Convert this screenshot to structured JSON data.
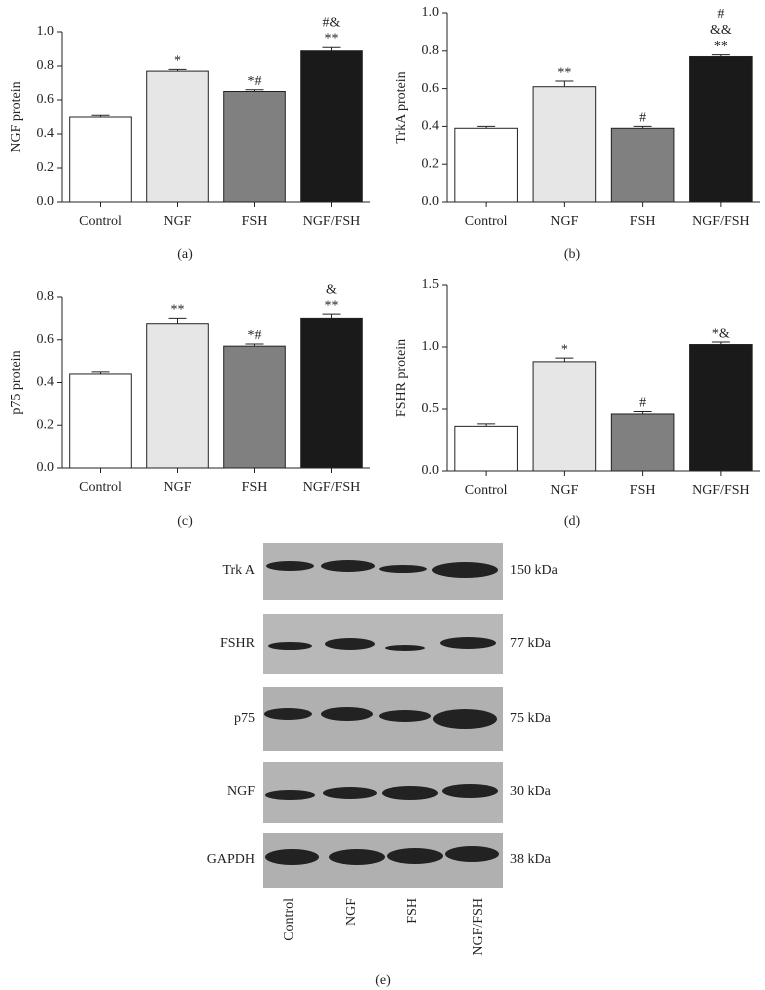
{
  "chart_data": [
    {
      "type": "bar",
      "ylabel": "NGF protein",
      "caption": "(a)",
      "categories": [
        "Control",
        "NGF",
        "FSH",
        "NGF/FSH"
      ],
      "values": [
        0.5,
        0.77,
        0.65,
        0.89
      ],
      "errors": [
        0.01,
        0.01,
        0.01,
        0.02
      ],
      "colors": [
        "#ffffff",
        "#e6e6e6",
        "#808080",
        "#1a1a1a"
      ],
      "annotations": [
        null,
        [
          "*"
        ],
        [
          "*#"
        ],
        [
          "#&",
          "**"
        ]
      ],
      "ylim": [
        0,
        1.0
      ],
      "yticks": [
        {
          "value": 0,
          "label": "0.0"
        },
        0.2,
        0.4,
        0.6,
        0.8,
        {
          "value": 1.0,
          "label": "1.0"
        }
      ]
    },
    {
      "type": "bar",
      "ylabel": "TrkA protein",
      "caption": "(b)",
      "categories": [
        "Control",
        "NGF",
        "FSH",
        "NGF/FSH"
      ],
      "values": [
        0.39,
        0.61,
        0.39,
        0.77
      ],
      "errors": [
        0.01,
        0.03,
        0.01,
        0.01
      ],
      "colors": [
        "#ffffff",
        "#e6e6e6",
        "#808080",
        "#1a1a1a"
      ],
      "annotations": [
        null,
        [
          "**"
        ],
        [
          "#"
        ],
        [
          "#",
          "&&",
          "**"
        ]
      ],
      "ylim": [
        0,
        1.0
      ],
      "yticks": [
        {
          "value": 0,
          "label": "0.0"
        },
        0.2,
        0.4,
        0.6,
        0.8,
        {
          "value": 1.0,
          "label": "1.0"
        }
      ]
    },
    {
      "type": "bar",
      "ylabel": "p75 protein",
      "caption": "(c)",
      "categories": [
        "Control",
        "NGF",
        "FSH",
        "NGF/FSH"
      ],
      "values": [
        0.44,
        0.675,
        0.57,
        0.7
      ],
      "errors": [
        0.01,
        0.025,
        0.01,
        0.02
      ],
      "colors": [
        "#ffffff",
        "#e6e6e6",
        "#808080",
        "#1a1a1a"
      ],
      "annotations": [
        null,
        [
          "**"
        ],
        [
          "*#"
        ],
        [
          "&",
          "**"
        ]
      ],
      "ylim": [
        0,
        0.8
      ],
      "yticks": [
        {
          "value": 0,
          "label": "0.0"
        },
        0.2,
        0.4,
        0.6,
        0.8
      ]
    },
    {
      "type": "bar",
      "ylabel": "FSHR protein",
      "caption": "(d)",
      "categories": [
        "Control",
        "NGF",
        "FSH",
        "NGF/FSH"
      ],
      "values": [
        0.36,
        0.88,
        0.46,
        1.02
      ],
      "errors": [
        0.02,
        0.03,
        0.02,
        0.02
      ],
      "colors": [
        "#ffffff",
        "#e6e6e6",
        "#808080",
        "#1a1a1a"
      ],
      "annotations": [
        null,
        [
          "*"
        ],
        [
          "#"
        ],
        [
          "*&"
        ]
      ],
      "ylim": [
        0,
        1.5
      ],
      "yticks": [
        {
          "value": 0,
          "label": "0.0"
        },
        0.5,
        {
          "value": 1.0,
          "label": "1.0"
        },
        1.5
      ]
    }
  ],
  "blot": {
    "caption": "(e)",
    "rows": [
      {
        "label": "Trk A",
        "size": "150 kDa"
      },
      {
        "label": "FSHR",
        "size": "77 kDa"
      },
      {
        "label": "p75",
        "size": "75 kDa"
      },
      {
        "label": "NGF",
        "size": "30 kDa"
      },
      {
        "label": "GAPDH",
        "size": "38 kDa"
      }
    ],
    "lanes": [
      "Control",
      "NGF",
      "FSH",
      "NGF/FSH"
    ]
  }
}
